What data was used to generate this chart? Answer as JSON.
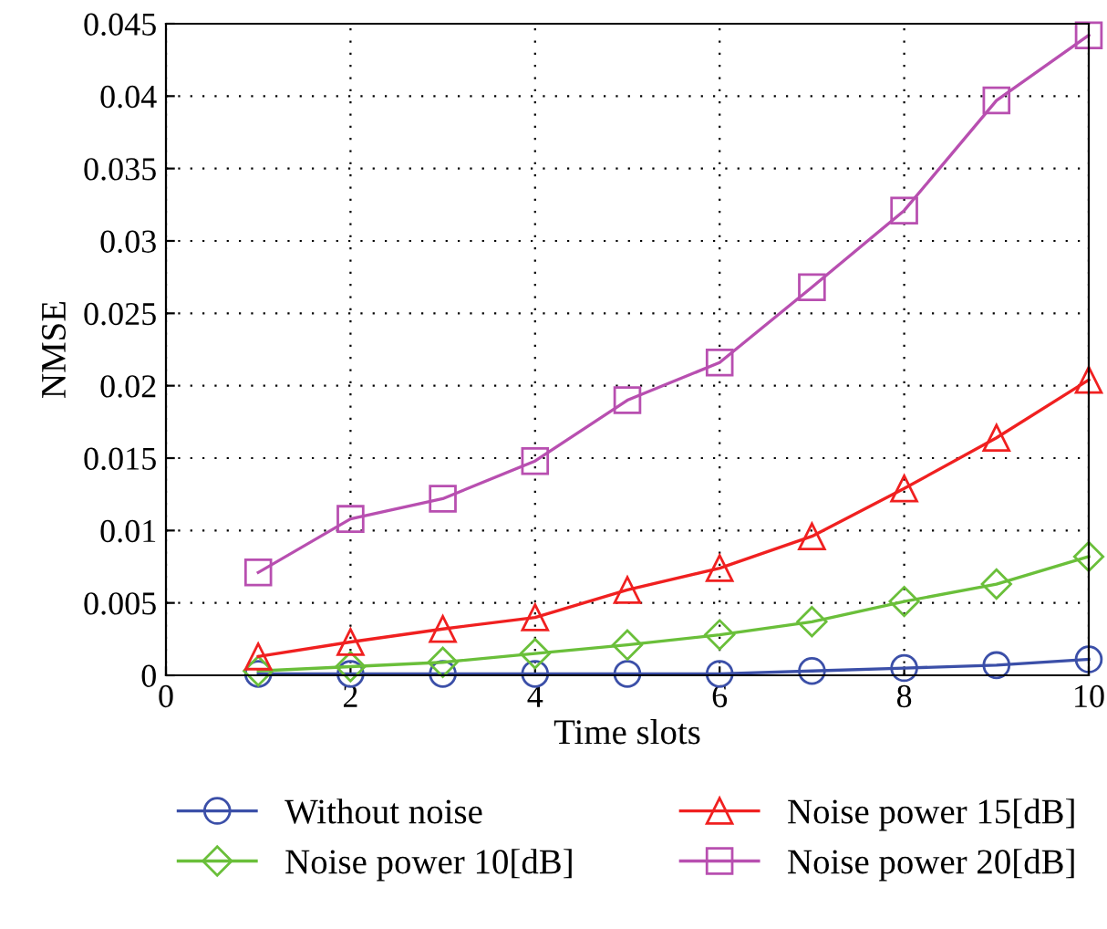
{
  "chart_data": {
    "type": "line",
    "xlabel": "Time slots",
    "ylabel": "NMSE",
    "x": [
      1,
      2,
      3,
      4,
      5,
      6,
      7,
      8,
      9,
      10
    ],
    "series": [
      {
        "name": "Without noise",
        "color": "#3b4fa8",
        "marker": "circle",
        "values": [
          0.0001,
          0.0001,
          0.0001,
          0.0001,
          0.0001,
          0.0001,
          0.0003,
          0.0005,
          0.0007,
          0.0011
        ]
      },
      {
        "name": "Noise power 10[dB]",
        "color": "#6abf3a",
        "marker": "diamond",
        "values": [
          0.0003,
          0.0006,
          0.0009,
          0.0015,
          0.0021,
          0.0028,
          0.0037,
          0.0051,
          0.0063,
          0.0082
        ]
      },
      {
        "name": "Noise power 15[dB]",
        "color": "#f02020",
        "marker": "triangle",
        "values": [
          0.0013,
          0.0023,
          0.0032,
          0.004,
          0.0059,
          0.0074,
          0.0096,
          0.0129,
          0.0164,
          0.0204
        ]
      },
      {
        "name": "Noise power 20[dB]",
        "color": "#b84fb0",
        "marker": "square",
        "values": [
          0.0071,
          0.0108,
          0.0122,
          0.0148,
          0.019,
          0.0216,
          0.0268,
          0.0321,
          0.0397,
          0.0442
        ]
      }
    ],
    "xlim": [
      0,
      10
    ],
    "xticks": [
      0,
      2,
      4,
      6,
      8,
      10
    ],
    "ylim": [
      0,
      0.045
    ],
    "yticks": [
      0,
      0.005,
      0.01,
      0.015,
      0.02,
      0.025,
      0.03,
      0.035,
      0.04,
      0.045
    ],
    "grid": true,
    "legend": "bottom",
    "line_style": "solid"
  }
}
